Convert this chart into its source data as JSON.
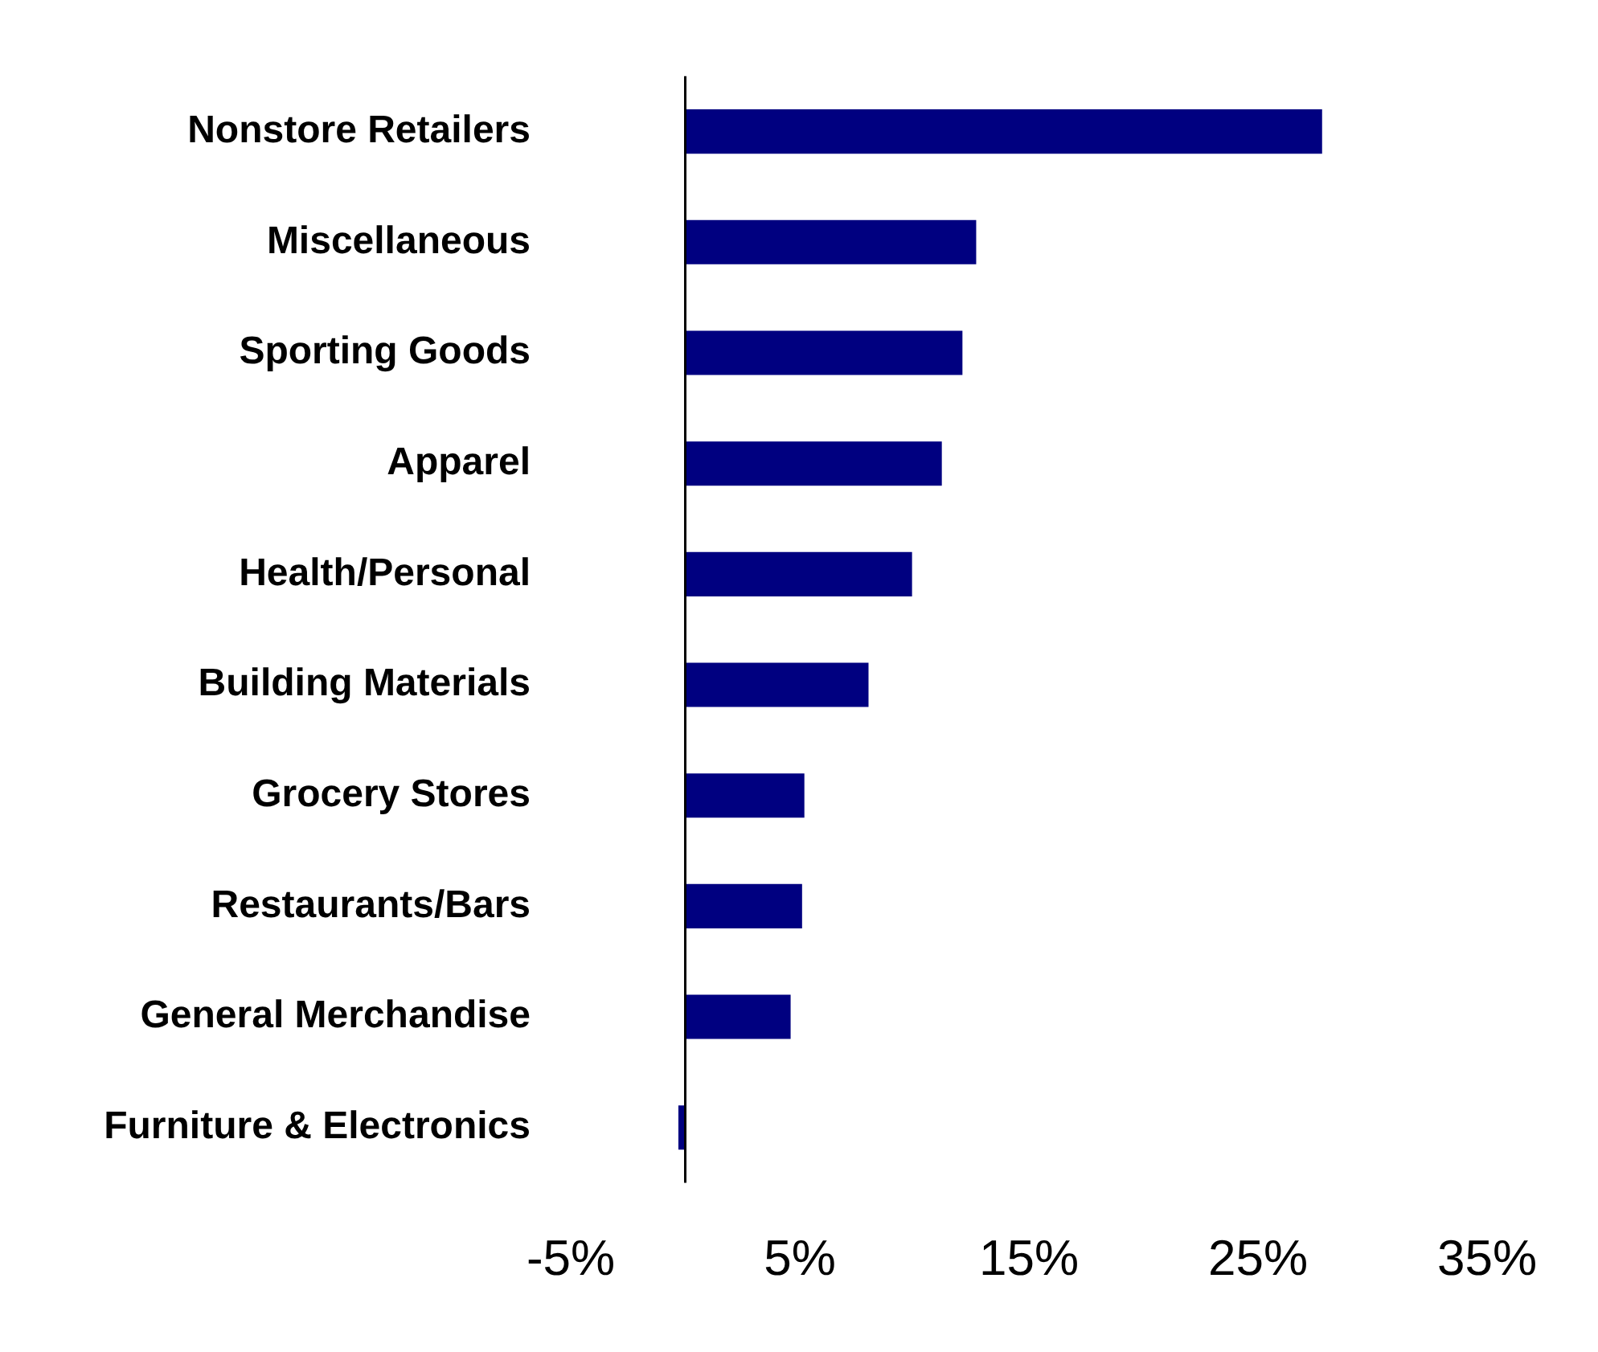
{
  "chart_data": {
    "type": "bar",
    "orientation": "horizontal",
    "categories": [
      "Nonstore Retailers",
      "Miscellaneous",
      "Sporting Goods",
      "Apparel",
      "Health/Personal",
      "Building Materials",
      "Grocery Stores",
      "Restaurants/Bars",
      "General Merchandise",
      "Furniture & Electronics"
    ],
    "values": [
      27.8,
      12.7,
      12.1,
      11.2,
      9.9,
      8.0,
      5.2,
      5.1,
      4.6,
      -0.3
    ],
    "color": "#000080",
    "xlim": [
      -5,
      35
    ],
    "xticks": [
      {
        "value": -5,
        "label": "-5%"
      },
      {
        "value": 5,
        "label": "5%"
      },
      {
        "value": 15,
        "label": "15%"
      },
      {
        "value": 25,
        "label": "25%"
      },
      {
        "value": 35,
        "label": "35%"
      }
    ],
    "grid": false,
    "legend": false
  }
}
